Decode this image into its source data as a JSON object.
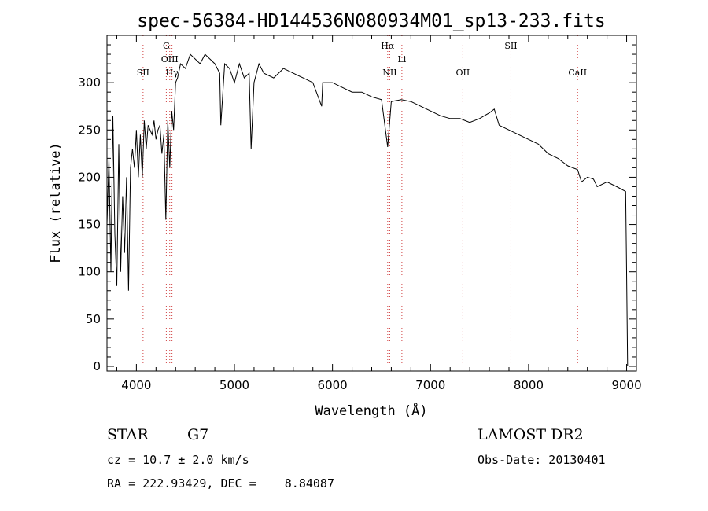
{
  "chart_data": {
    "type": "line",
    "title": "spec-56384-HD144536N080934M01_sp13-233.fits",
    "xlabel": "Wavelength (Å)",
    "ylabel": "Flux (relative)",
    "xlim": [
      3700,
      9100
    ],
    "ylim": [
      -5,
      350
    ],
    "xticks": [
      4000,
      5000,
      6000,
      7000,
      8000,
      9000
    ],
    "yticks": [
      0,
      50,
      100,
      150,
      200,
      250,
      300
    ],
    "grid": false,
    "series": [
      {
        "x": [
          3700,
          3720,
          3740,
          3760,
          3780,
          3800,
          3820,
          3840,
          3860,
          3880,
          3900,
          3920,
          3940,
          3960,
          3980,
          4000,
          4020,
          4040,
          4060,
          4080,
          4100,
          4120,
          4140,
          4160,
          4180,
          4200,
          4220,
          4240,
          4260,
          4280,
          4300,
          4320,
          4340,
          4360,
          4380,
          4400,
          4420,
          4450,
          4500,
          4550,
          4600,
          4650,
          4700,
          4750,
          4800,
          4850,
          4861,
          4900,
          4950,
          5000,
          5050,
          5100,
          5150,
          5170,
          5200,
          5250,
          5300,
          5400,
          5500,
          5600,
          5700,
          5800,
          5890,
          5900,
          6000,
          6100,
          6200,
          6300,
          6400,
          6500,
          6563,
          6600,
          6700,
          6800,
          6900,
          7000,
          7100,
          7200,
          7300,
          7400,
          7500,
          7550,
          7600,
          7650,
          7700,
          7800,
          7900,
          8000,
          8100,
          8200,
          8300,
          8400,
          8500,
          8540,
          8600,
          8662,
          8700,
          8800,
          8900,
          8990,
          9000,
          9010
        ],
        "y": [
          150,
          220,
          100,
          265,
          140,
          85,
          235,
          100,
          180,
          120,
          200,
          80,
          210,
          230,
          210,
          250,
          200,
          245,
          200,
          260,
          230,
          255,
          250,
          245,
          260,
          240,
          250,
          255,
          225,
          245,
          155,
          260,
          210,
          270,
          250,
          300,
          305,
          320,
          315,
          330,
          325,
          320,
          330,
          325,
          320,
          310,
          255,
          320,
          315,
          300,
          320,
          305,
          310,
          230,
          300,
          320,
          310,
          305,
          315,
          310,
          305,
          300,
          275,
          300,
          300,
          295,
          290,
          290,
          285,
          282,
          232,
          280,
          282,
          280,
          275,
          270,
          265,
          262,
          262,
          258,
          262,
          265,
          268,
          272,
          255,
          250,
          245,
          240,
          235,
          225,
          220,
          212,
          208,
          195,
          200,
          198,
          190,
          195,
          190,
          185,
          100,
          0
        ]
      }
    ],
    "line_markers": [
      {
        "label": "SII",
        "x": 4068,
        "row": 2
      },
      {
        "label": "G",
        "x": 4305,
        "row": 0
      },
      {
        "label": "OIII",
        "x": 4340,
        "row": 1
      },
      {
        "label": "Hγ",
        "x": 4363,
        "row": 2
      },
      {
        "label": "Hα",
        "x": 6563,
        "row": 0
      },
      {
        "label": "NII",
        "x": 6584,
        "row": 2
      },
      {
        "label": "Li",
        "x": 6708,
        "row": 1
      },
      {
        "label": "OII",
        "x": 7330,
        "row": 2
      },
      {
        "label": "SII",
        "x": 7820,
        "row": 0
      },
      {
        "label": "CaII",
        "x": 8500,
        "row": 2
      }
    ]
  },
  "info": {
    "object_class": "STAR",
    "subclass": "G7",
    "survey": "LAMOST DR2",
    "cz": "cz = 10.7 ± 2.0 km/s",
    "obs_date": "Obs-Date: 20130401",
    "coords": "RA = 222.93429, DEC =    8.84087"
  },
  "colors": {
    "line": "#000000",
    "marker": "#d04040"
  }
}
